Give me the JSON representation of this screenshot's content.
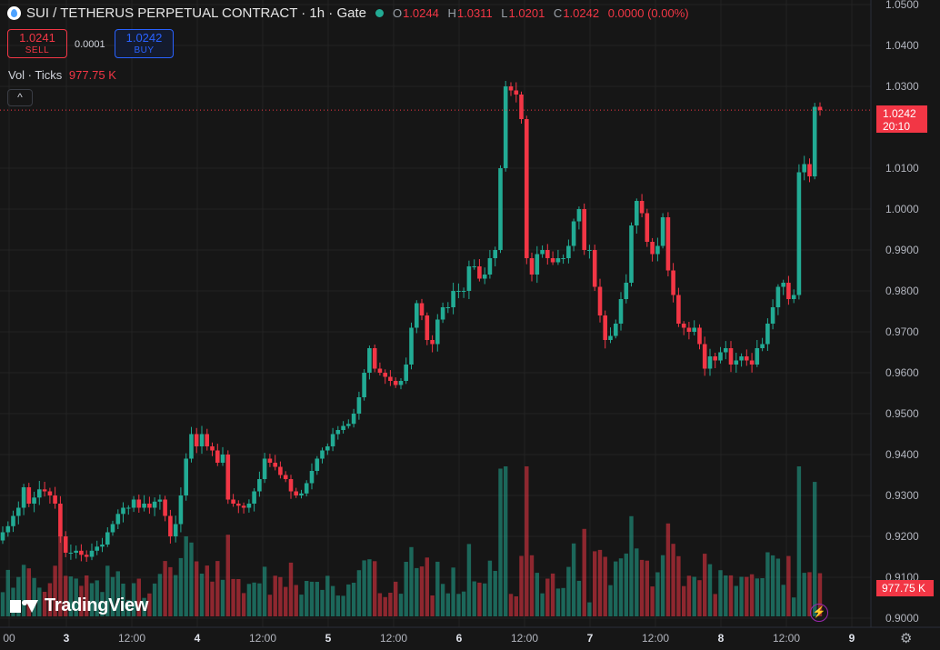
{
  "header": {
    "symbol": "SUI / TETHERUS PERPETUAL CONTRACT · 1h · Gate",
    "ohlc": {
      "o_label": "O",
      "o": "1.0244",
      "h_label": "H",
      "h": "1.0311",
      "l_label": "L",
      "l": "1.0201",
      "c_label": "C",
      "c": "1.0242",
      "change": "0.0000 (0.00%)"
    }
  },
  "trade": {
    "sell_price": "1.0241",
    "sell_label": "SELL",
    "spread": "0.0001",
    "buy_price": "1.0242",
    "buy_label": "BUY"
  },
  "volume_legend": {
    "label": "Vol · Ticks",
    "value": "977.75 K"
  },
  "collapse_glyph": "^",
  "brand": {
    "name": "TradingView"
  },
  "price_tag": {
    "price": "1.0242",
    "countdown": "20:10"
  },
  "volume_tag": "977.75 K",
  "colors": {
    "up": "#22ab94",
    "down": "#f23645",
    "background": "#161616",
    "grid": "#232323"
  },
  "icons": [
    "sui-coin-icon",
    "market-open-dot-icon",
    "chevron-up-icon",
    "tradingview-logo-icon",
    "lightning-icon",
    "settings-gear-icon"
  ],
  "chart_data": {
    "type": "candlestick",
    "interval": "1h",
    "x_tick_labels": [
      "00",
      "3",
      "12:00",
      "4",
      "12:00",
      "5",
      "12:00",
      "6",
      "12:00",
      "7",
      "12:00",
      "8",
      "12:00",
      "9"
    ],
    "y_tick_labels": [
      "1.0500",
      "1.0400",
      "1.0300",
      "1.0100",
      "1.0000",
      "0.9900",
      "0.9800",
      "0.9700",
      "0.9600",
      "0.9500",
      "0.9400",
      "0.9300",
      "0.9200",
      "0.9100",
      "0.9000"
    ],
    "ylim": [
      0.9,
      1.05
    ],
    "last_price": 1.0242,
    "series": [
      {
        "name": "Price",
        "close": [
          0.921,
          0.9225,
          0.925,
          0.927,
          0.932,
          0.928,
          0.9295,
          0.9315,
          0.931,
          0.93,
          0.928,
          0.92,
          0.916,
          0.916,
          0.9165,
          0.9155,
          0.915,
          0.9165,
          0.9175,
          0.918,
          0.921,
          0.923,
          0.9255,
          0.927,
          0.927,
          0.929,
          0.927,
          0.928,
          0.927,
          0.9285,
          0.929,
          0.925,
          0.92,
          0.923,
          0.93,
          0.939,
          0.945,
          0.942,
          0.945,
          0.942,
          0.941,
          0.938,
          0.94,
          0.929,
          0.928,
          0.9275,
          0.927,
          0.928,
          0.931,
          0.934,
          0.939,
          0.938,
          0.937,
          0.935,
          0.934,
          0.931,
          0.93,
          0.9305,
          0.933,
          0.936,
          0.939,
          0.941,
          0.942,
          0.945,
          0.946,
          0.947,
          0.9475,
          0.95,
          0.954,
          0.96,
          0.966,
          0.961,
          0.96,
          0.959,
          0.958,
          0.957,
          0.958,
          0.962,
          0.971,
          0.977,
          0.974,
          0.968,
          0.967,
          0.973,
          0.976,
          0.976,
          0.98,
          0.98,
          0.98,
          0.986,
          0.986,
          0.983,
          0.984,
          0.988,
          0.99,
          1.01,
          1.03,
          1.029,
          1.028,
          1.022,
          0.988,
          0.984,
          0.989,
          0.99,
          0.988,
          0.987,
          0.988,
          0.988,
          0.991,
          0.997,
          1.0,
          0.99,
          0.99,
          0.981,
          0.974,
          0.968,
          0.969,
          0.972,
          0.978,
          0.982,
          0.996,
          1.002,
          0.999,
          0.992,
          0.989,
          0.991,
          0.998,
          0.985,
          0.979,
          0.972,
          0.971,
          0.97,
          0.971,
          0.967,
          0.961,
          0.964,
          0.963,
          0.965,
          0.966,
          0.962,
          0.963,
          0.964,
          0.963,
          0.962,
          0.966,
          0.967,
          0.972,
          0.976,
          0.981,
          0.982,
          0.978,
          0.979,
          1.009,
          1.011,
          1.008,
          1.025,
          1.0242
        ]
      }
    ],
    "volume_series": {
      "name": "Vol · Ticks",
      "last": "977.75 K"
    }
  }
}
